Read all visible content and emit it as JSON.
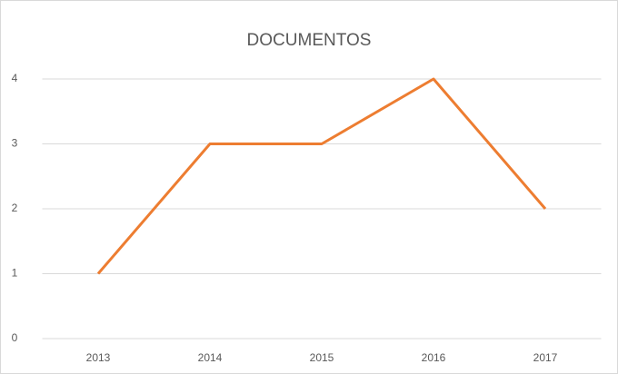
{
  "chart_data": {
    "type": "line",
    "title": "DOCUMENTOS",
    "categories": [
      "2013",
      "2014",
      "2015",
      "2016",
      "2017"
    ],
    "values": [
      1,
      3,
      3,
      4,
      2
    ],
    "color": "#ed7d31",
    "ylim": [
      0,
      4
    ],
    "yticks": [
      0,
      1,
      2,
      3,
      4
    ],
    "grid": true
  }
}
